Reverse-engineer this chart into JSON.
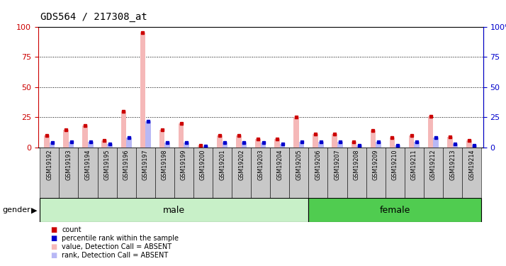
{
  "title": "GDS564 / 217308_at",
  "samples": [
    "GSM19192",
    "GSM19193",
    "GSM19194",
    "GSM19195",
    "GSM19196",
    "GSM19197",
    "GSM19198",
    "GSM19199",
    "GSM19200",
    "GSM19201",
    "GSM19202",
    "GSM19203",
    "GSM19204",
    "GSM19205",
    "GSM19206",
    "GSM19207",
    "GSM19208",
    "GSM19209",
    "GSM19210",
    "GSM19211",
    "GSM19212",
    "GSM19213",
    "GSM19214"
  ],
  "count_values": [
    10,
    15,
    18,
    6,
    30,
    95,
    15,
    20,
    2,
    10,
    10,
    7,
    7,
    25,
    11,
    11,
    5,
    14,
    8,
    10,
    26,
    9,
    6
  ],
  "rank_values": [
    4,
    5,
    5,
    3,
    8,
    22,
    4,
    4,
    1,
    4,
    4,
    4,
    3,
    5,
    5,
    5,
    2,
    5,
    2,
    5,
    8,
    3,
    2
  ],
  "absent_count_color": "#f5b8b8",
  "absent_rank_color": "#b8b8f5",
  "count_color": "#cc0000",
  "rank_color": "#0000cc",
  "ylim": [
    0,
    100
  ],
  "yticks": [
    0,
    25,
    50,
    75,
    100
  ],
  "num_male": 14,
  "male_color": "#c8f0c8",
  "female_color": "#50cc50",
  "legend_items": [
    {
      "label": "count",
      "color": "#cc0000"
    },
    {
      "label": "percentile rank within the sample",
      "color": "#0000cc"
    },
    {
      "label": "value, Detection Call = ABSENT",
      "color": "#f5b8b8"
    },
    {
      "label": "rank, Detection Call = ABSENT",
      "color": "#b8b8f5"
    }
  ],
  "bg_color": "#ffffff",
  "axis_color_left": "#cc0000",
  "axis_color_right": "#0000cc",
  "label_bg_color": "#c8c8c8"
}
